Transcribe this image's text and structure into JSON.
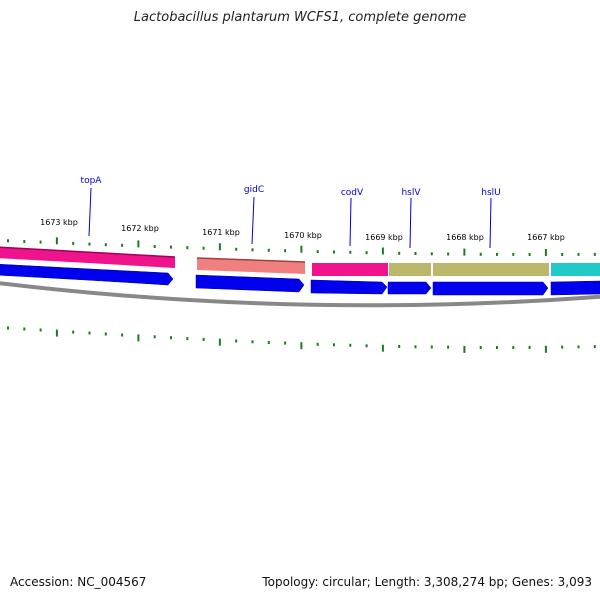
{
  "title": "Lactobacillus plantarum WCFS1, complete genome",
  "footer": {
    "accession": "Accession: NC_004567",
    "summary": "Topology: circular; Length: 3,308,274 bp; Genes: 3,093"
  },
  "colors": {
    "background": "#ffffff",
    "backbone": "#888888",
    "tick": "#1e7a1e",
    "forward_cds": "#0000ee",
    "gene_label": "#0000cc",
    "tick_label": "#000000"
  },
  "kbp_labels": [
    "1673 kbp",
    "1672 kbp",
    "1671 kbp",
    "1670 kbp",
    "1669 kbp",
    "1668 kbp",
    "1667 kbp"
  ],
  "genes": [
    {
      "name": "topA",
      "category_color": "#f0148c"
    },
    {
      "name": "gidC",
      "category_color": "#f08080"
    },
    {
      "name": "codV",
      "category_color": "#f0148c"
    },
    {
      "name": "hslV",
      "category_color": "#bdb76b"
    },
    {
      "name": "hslU",
      "category_color": "#bdb76b"
    },
    {
      "name": "",
      "category_color": "#20c8c8"
    }
  ]
}
